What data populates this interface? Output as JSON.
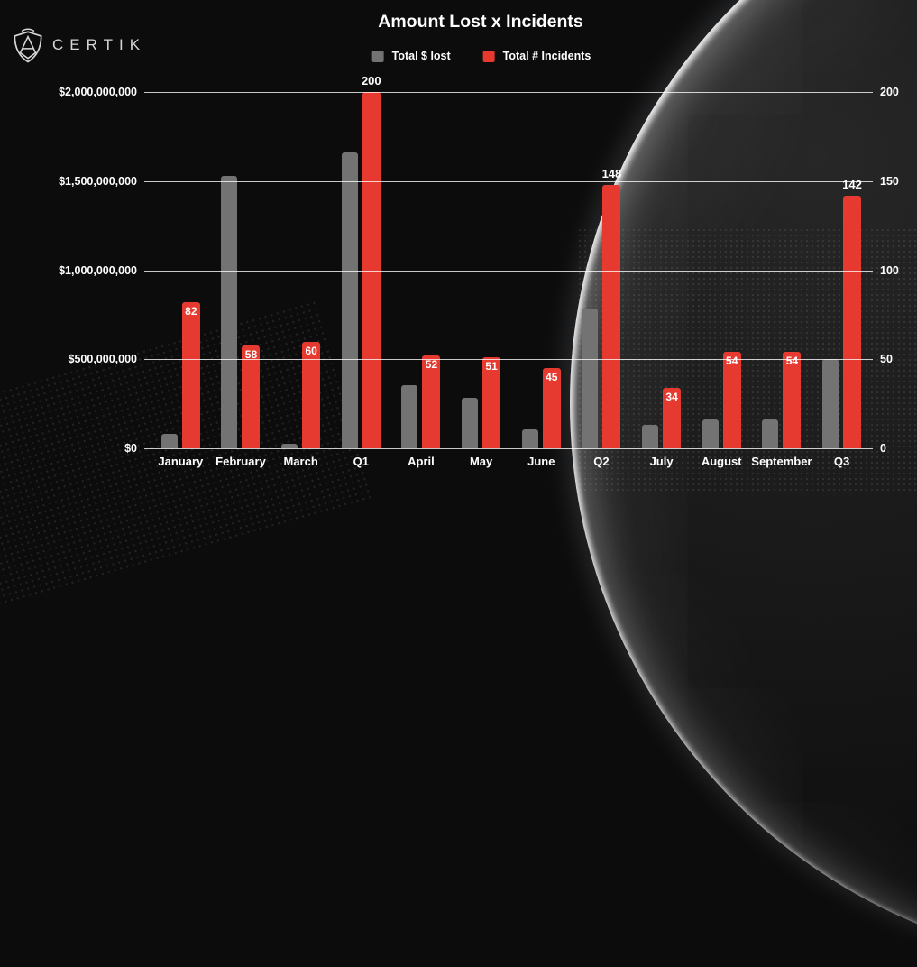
{
  "logo": {
    "text": "CERTIK",
    "icon": "certik-shield-icon"
  },
  "chart_data": {
    "type": "bar",
    "title": "Amount Lost x Incidents",
    "categories": [
      "January",
      "February",
      "March",
      "Q1",
      "April",
      "May",
      "June",
      "Q2",
      "July",
      "August",
      "September",
      "Q3"
    ],
    "series": [
      {
        "name": "Total $ lost",
        "axis": "left",
        "color": "#737373",
        "values": [
          80000000,
          1530000000,
          25000000,
          1660000000,
          355000000,
          285000000,
          105000000,
          785000000,
          130000000,
          160000000,
          160000000,
          500000000
        ]
      },
      {
        "name": "Total # Incidents",
        "axis": "right",
        "color": "#e63a30",
        "values": [
          82,
          58,
          60,
          200,
          52,
          51,
          45,
          148,
          34,
          54,
          54,
          142
        ],
        "data_labels": [
          82,
          58,
          60,
          200,
          52,
          51,
          45,
          148,
          34,
          54,
          54,
          142
        ],
        "label_above": [
          false,
          false,
          false,
          true,
          false,
          false,
          false,
          true,
          false,
          false,
          false,
          true
        ]
      }
    ],
    "left_axis": {
      "ticks": [
        "$2,000,000,000",
        "$1,500,000,000",
        "$1,000,000,000",
        "$500,000,000",
        "$0"
      ],
      "min": 0,
      "max": 2000000000
    },
    "right_axis": {
      "ticks": [
        "200",
        "150",
        "100",
        "50",
        "0"
      ],
      "min": 0,
      "max": 200
    },
    "grid": true,
    "legend_position": "top",
    "background": "#0c0c0c"
  }
}
